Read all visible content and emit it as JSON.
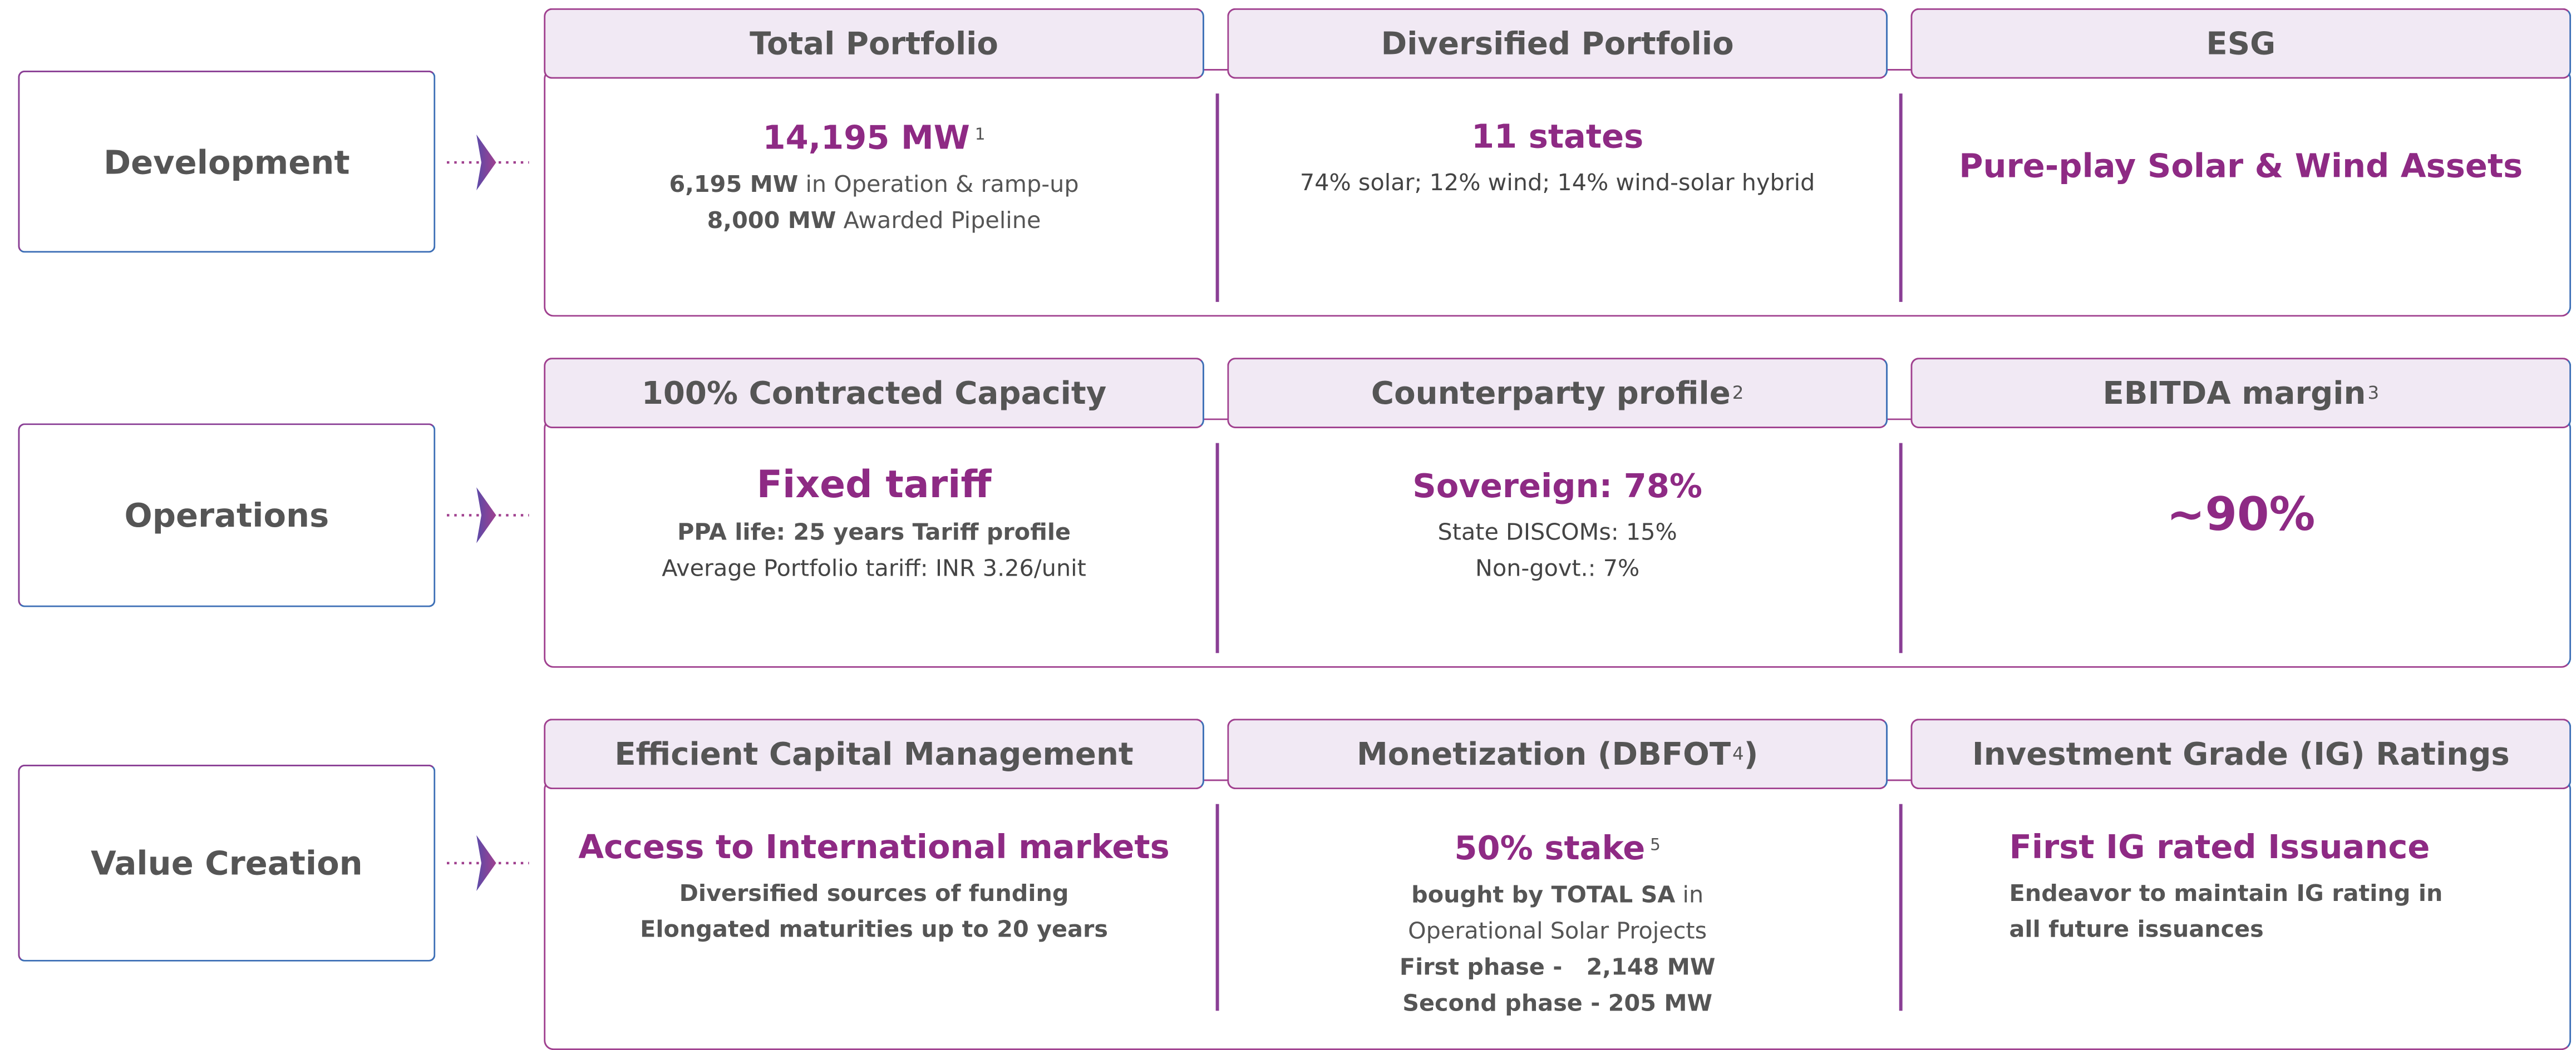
{
  "rows": [
    {
      "label": "Development",
      "sections": [
        {
          "header": [
            {
              "t": "Total Portfolio"
            }
          ],
          "lines": [
            [
              {
                "t": "14,195 MW",
                "s": "accent"
              },
              {
                "t": "1",
                "s": "sup"
              }
            ],
            [
              {
                "t": "6,195 MW",
                "s": "bold"
              },
              {
                "t": " in Operation & ramp-up"
              }
            ],
            [
              {
                "t": "8,000 MW",
                "s": "bold"
              },
              {
                "t": " Awarded Pipeline"
              }
            ]
          ]
        },
        {
          "header": [
            {
              "t": "Diversified Portfolio"
            }
          ],
          "lines": [
            [
              {
                "t": "11 states",
                "s": "accent"
              }
            ],
            [
              {
                "t": "74% solar; 12% wind; 14% wind-solar hybrid",
                "s": "semi"
              }
            ]
          ]
        },
        {
          "header": [
            {
              "t": "ESG"
            }
          ],
          "lines": [
            [
              {
                "t": "Pure-play Solar & Wind Assets",
                "s": "accent"
              }
            ]
          ],
          "offset": true
        }
      ]
    },
    {
      "label": "Operations",
      "sections": [
        {
          "header": [
            {
              "t": "100% Contracted Capacity"
            }
          ],
          "lines": [
            [
              {
                "t": "Fixed tariff",
                "s": "accent-lg"
              }
            ],
            [
              {
                "t": "PPA life: 25 years Tariff profile",
                "s": "bold"
              }
            ],
            [
              {
                "t": "Average Portfolio tariff: INR 3.26/unit",
                "s": "semi"
              }
            ]
          ]
        },
        {
          "header": [
            {
              "t": "Counterparty profile"
            },
            {
              "t": "2",
              "s": "sup"
            }
          ],
          "lines": [
            [
              {
                "t": "Sovereign: 78%",
                "s": "accent"
              }
            ],
            [
              {
                "t": "State DISCOMs: 15%",
                "s": "semi"
              }
            ],
            [
              {
                "t": "Non-govt.: 7%",
                "s": "semi"
              }
            ]
          ]
        },
        {
          "header": [
            {
              "t": "EBITDA margin"
            },
            {
              "t": "3",
              "s": "sup"
            }
          ],
          "lines": [
            [
              {
                "t": "~90%",
                "s": "accent-xl"
              }
            ]
          ],
          "offset": true
        }
      ]
    },
    {
      "label": "Value Creation",
      "sections": [
        {
          "header": [
            {
              "t": "Efficient Capital Management"
            }
          ],
          "lines": [
            [
              {
                "t": "Access to International markets",
                "s": "accent"
              }
            ],
            [
              {
                "t": "Diversified sources of funding",
                "s": "bold"
              }
            ],
            [
              {
                "t": "Elongated maturities up to 20 years",
                "s": "bold"
              }
            ]
          ]
        },
        {
          "header": [
            {
              "t": "Monetization (DBFOT"
            },
            {
              "t": "4",
              "s": "sup"
            },
            {
              "t": ")"
            }
          ],
          "lines": [
            [
              {
                "t": "50% stake",
                "s": "accent"
              },
              {
                "t": "5",
                "s": "sup"
              }
            ],
            [
              {
                "t": "bought by TOTAL SA",
                "s": "bold"
              },
              {
                "t": " in"
              }
            ],
            [
              {
                "t": "Operational Solar Projects"
              }
            ],
            [
              {
                "t": "First phase -   2,148 MW",
                "s": "bold"
              }
            ],
            [
              {
                "t": "Second phase - 205 MW",
                "s": "bold"
              }
            ]
          ]
        },
        {
          "header": [
            {
              "t": "Investment Grade (IG) Ratings"
            }
          ],
          "align": "left",
          "lines": [
            [
              {
                "t": "First IG rated Issuance",
                "s": "accent"
              }
            ],
            [
              {
                "t": "Endeavor to maintain IG rating in",
                "s": "bold"
              }
            ],
            [
              {
                "t": "all future issuances",
                "s": "bold"
              }
            ]
          ]
        }
      ]
    }
  ]
}
